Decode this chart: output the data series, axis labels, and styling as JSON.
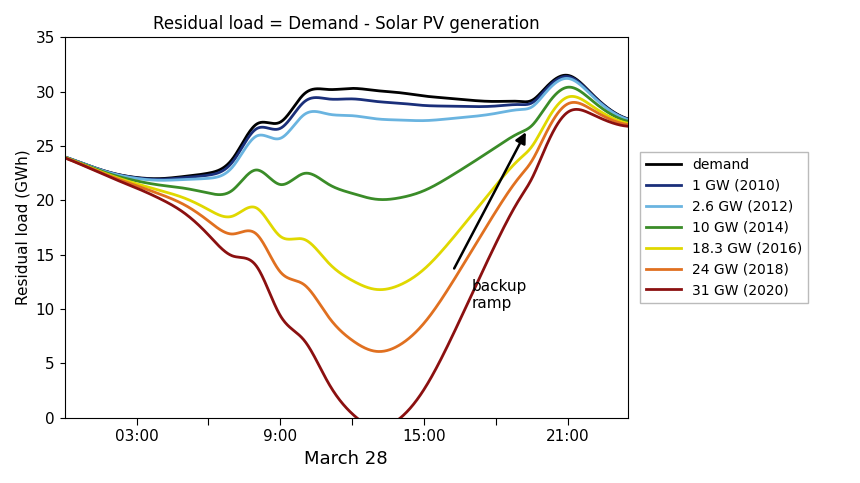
{
  "title": "Residual load = Demand - Solar PV generation",
  "xlabel": "March 28",
  "ylabel": "Residual load (GWh)",
  "xlim": [
    0,
    23.5
  ],
  "ylim": [
    0,
    35
  ],
  "yticks": [
    0,
    5,
    10,
    15,
    20,
    25,
    30,
    35
  ],
  "xtick_positions": [
    3,
    6,
    9,
    12,
    15,
    18,
    21
  ],
  "xtick_labels": [
    "03:00",
    "",
    "9:00",
    "",
    "15:00",
    "",
    "21:00"
  ],
  "lines": [
    {
      "label": "demand",
      "color": "#000000",
      "linewidth": 2.0
    },
    {
      "label": "1 GW (2010)",
      "color": "#1a2f7a",
      "linewidth": 2.0
    },
    {
      "label": "2.6 GW (2012)",
      "color": "#6ab4e0",
      "linewidth": 2.0
    },
    {
      "label": "10 GW (2014)",
      "color": "#3a8c28",
      "linewidth": 2.0
    },
    {
      "label": "18.3 GW (2016)",
      "color": "#e0d800",
      "linewidth": 2.0
    },
    {
      "label": "24 GW (2018)",
      "color": "#e07020",
      "linewidth": 2.0
    },
    {
      "label": "31 GW (2020)",
      "color": "#8b1010",
      "linewidth": 2.0
    }
  ],
  "solar_capacities": [
    0,
    1,
    2.6,
    10,
    18.3,
    24,
    31
  ],
  "annotation_text": "backup\nramp",
  "background_color": "#ffffff",
  "legend_fontsize": 10,
  "title_fontsize": 12,
  "axis_fontsize": 11
}
